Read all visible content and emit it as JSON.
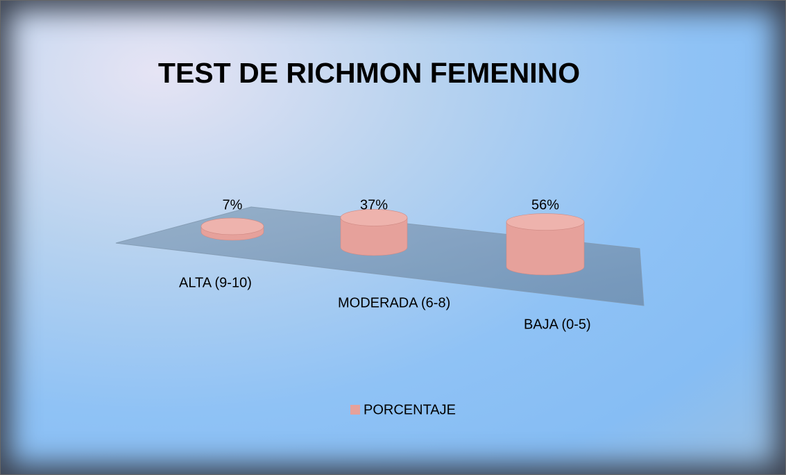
{
  "chart_data": {
    "type": "bar3d",
    "title": "TEST DE RICHMON FEMENINO",
    "categories": [
      "ALTA (9-10)",
      "MODERADA (6-8)",
      "BAJA (0-5)"
    ],
    "series": [
      {
        "name": "PORCENTAJE",
        "color": "#e6a19b",
        "values": [
          7,
          37,
          56
        ],
        "value_labels": [
          "7%",
          "37%",
          "56%"
        ]
      }
    ],
    "legend": "bottom"
  }
}
